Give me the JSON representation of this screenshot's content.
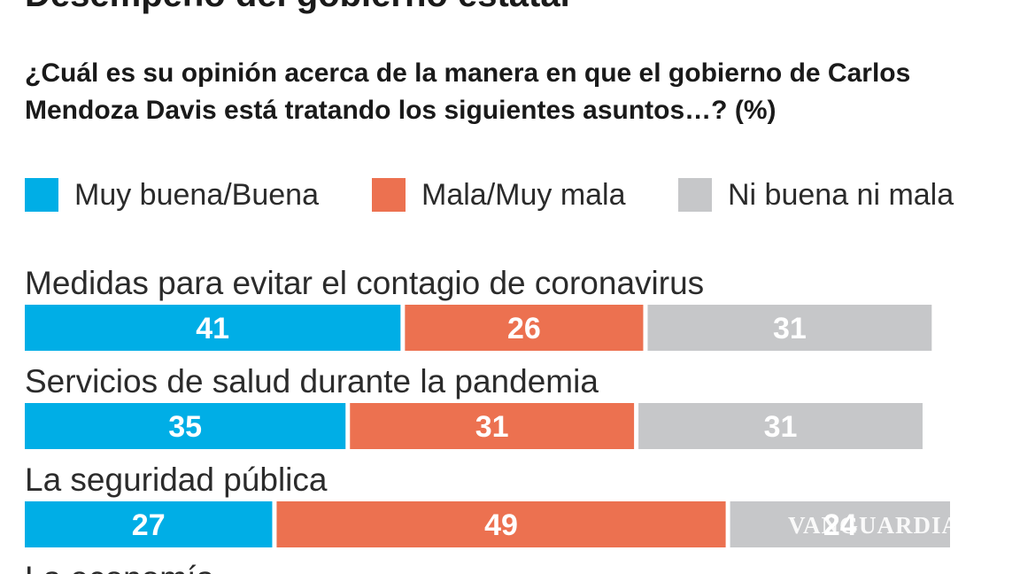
{
  "header": {
    "title": "Desempeño del gobierno estatal",
    "question": "¿Cuál es su opinión acerca de la manera en que el gobierno de Carlos Mendoza Davis está tratando los siguientes asuntos…? (%)"
  },
  "watermark": "VANGUARDIA",
  "chart_data": {
    "type": "bar",
    "orientation": "horizontal",
    "stacked": true,
    "title": "Desempeño del gobierno estatal",
    "subtitle": "¿Cuál es su opinión acerca de la manera en que el gobierno de Carlos Mendoza Davis está tratando los siguientes asuntos…? (%)",
    "categories": [
      "Medidas para evitar el contagio de coronavirus",
      "Servicios de salud durante la pandemia",
      "La seguridad pública",
      "La economía"
    ],
    "series": [
      {
        "name": "Muy buena/Buena",
        "color": "#00aee6",
        "values": [
          41,
          35,
          27,
          null
        ]
      },
      {
        "name": "Mala/Muy mala",
        "color": "#ec7150",
        "values": [
          26,
          31,
          49,
          null
        ]
      },
      {
        "name": "Ni buena ni mala",
        "color": "#c6c7c9",
        "values": [
          31,
          31,
          24,
          null
        ]
      }
    ],
    "xlim": [
      0,
      100
    ],
    "legend": "top",
    "grid": false
  }
}
